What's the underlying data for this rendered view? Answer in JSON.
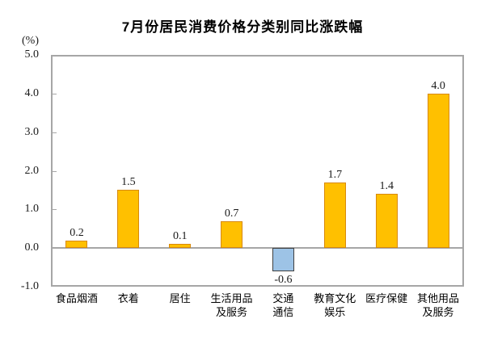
{
  "chart_data": {
    "type": "bar",
    "title": "7月份居民消费价格分类别同比涨跌幅",
    "unit_label": "(%)",
    "ylabel": "%",
    "xlabel": "",
    "categories": [
      "食品烟酒",
      "衣着",
      "居住",
      "生活用品\n及服务",
      "交通\n通信",
      "教育文化\n娱乐",
      "医疗保健",
      "其他用品\n及服务"
    ],
    "values": [
      0.2,
      1.5,
      0.1,
      0.7,
      -0.6,
      1.7,
      1.4,
      4.0
    ],
    "data_labels": [
      "0.2",
      "1.5",
      "0.1",
      "0.7",
      "-0.6",
      "1.7",
      "1.4",
      "4.0"
    ],
    "y_ticks": [
      5.0,
      4.0,
      3.0,
      2.0,
      1.0,
      0.0,
      -1.0
    ],
    "y_tick_labels": [
      "5.0",
      "4.0",
      "3.0",
      "2.0",
      "1.0",
      "0.0",
      "-1.0"
    ],
    "ylim": [
      -1.0,
      5.0
    ],
    "grid": false,
    "legend": false,
    "colors": {
      "positive_fill": "#FFC000",
      "positive_border": "#D8890B",
      "negative_fill": "#9DC3E6",
      "negative_border": "#404040",
      "plot_border": "#A6A6A6",
      "zero_line": "#A6A6A6",
      "text": "#1A1A1A"
    }
  }
}
